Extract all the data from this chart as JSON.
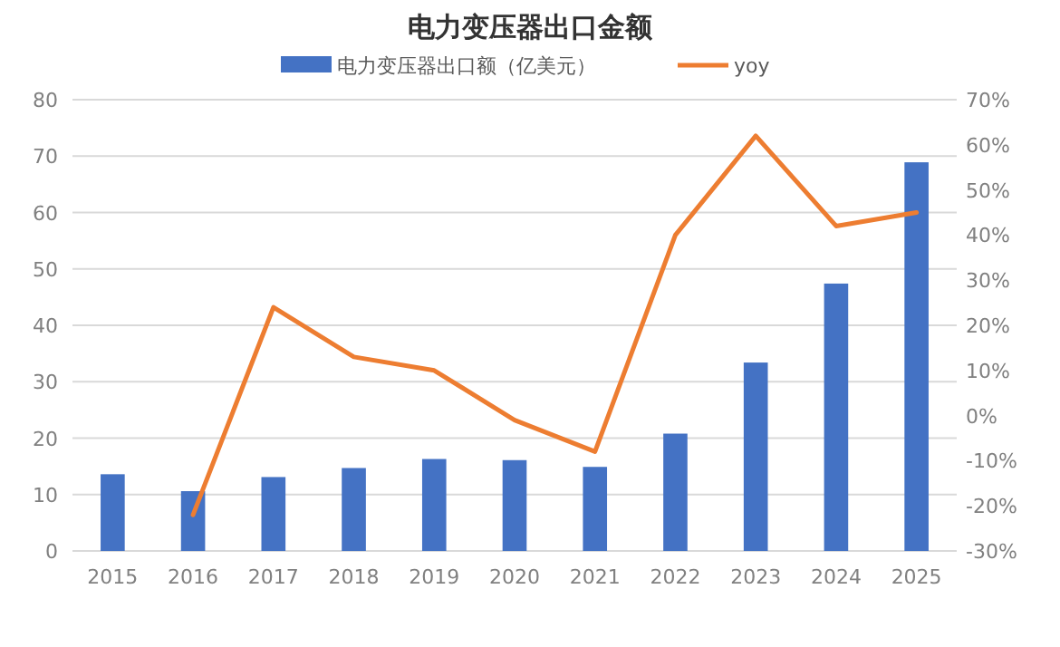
{
  "chart_data": {
    "type": "bar",
    "title": "电力变压器出口金额",
    "categories": [
      "2015",
      "2016",
      "2017",
      "2018",
      "2019",
      "2020",
      "2021",
      "2022",
      "2023",
      "2024",
      "2025"
    ],
    "series": [
      {
        "name": "电力变压器出口额（亿美元）",
        "color": "#4472c4",
        "values": [
          13.6,
          10.6,
          13.1,
          14.7,
          16.3,
          16.1,
          14.9,
          20.8,
          33.4,
          47.4,
          68.9
        ]
      },
      {
        "name": "yoy",
        "type": "line",
        "axis": "y2",
        "color": "#ed7d31",
        "values": [
          null,
          -22,
          24,
          13,
          10,
          -1,
          -8,
          40,
          62,
          42,
          45
        ]
      }
    ],
    "ylim": [
      0,
      80
    ],
    "yticks": [
      0,
      10,
      20,
      30,
      40,
      50,
      60,
      70,
      80
    ],
    "y2lim": [
      -30,
      70
    ],
    "y2ticks": [
      {
        "value": -30,
        "label": "-30%"
      },
      {
        "value": -20,
        "label": "-20%"
      },
      {
        "value": -10,
        "label": "-10%"
      },
      {
        "value": 0,
        "label": "0%"
      },
      {
        "value": 10,
        "label": "10%"
      },
      {
        "value": 20,
        "label": "20%"
      },
      {
        "value": 30,
        "label": "30%"
      },
      {
        "value": 40,
        "label": "40%"
      },
      {
        "value": 50,
        "label": "50%"
      },
      {
        "value": 60,
        "label": "60%"
      },
      {
        "value": 70,
        "label": "70%"
      }
    ],
    "grid": "y",
    "legend": "top"
  }
}
